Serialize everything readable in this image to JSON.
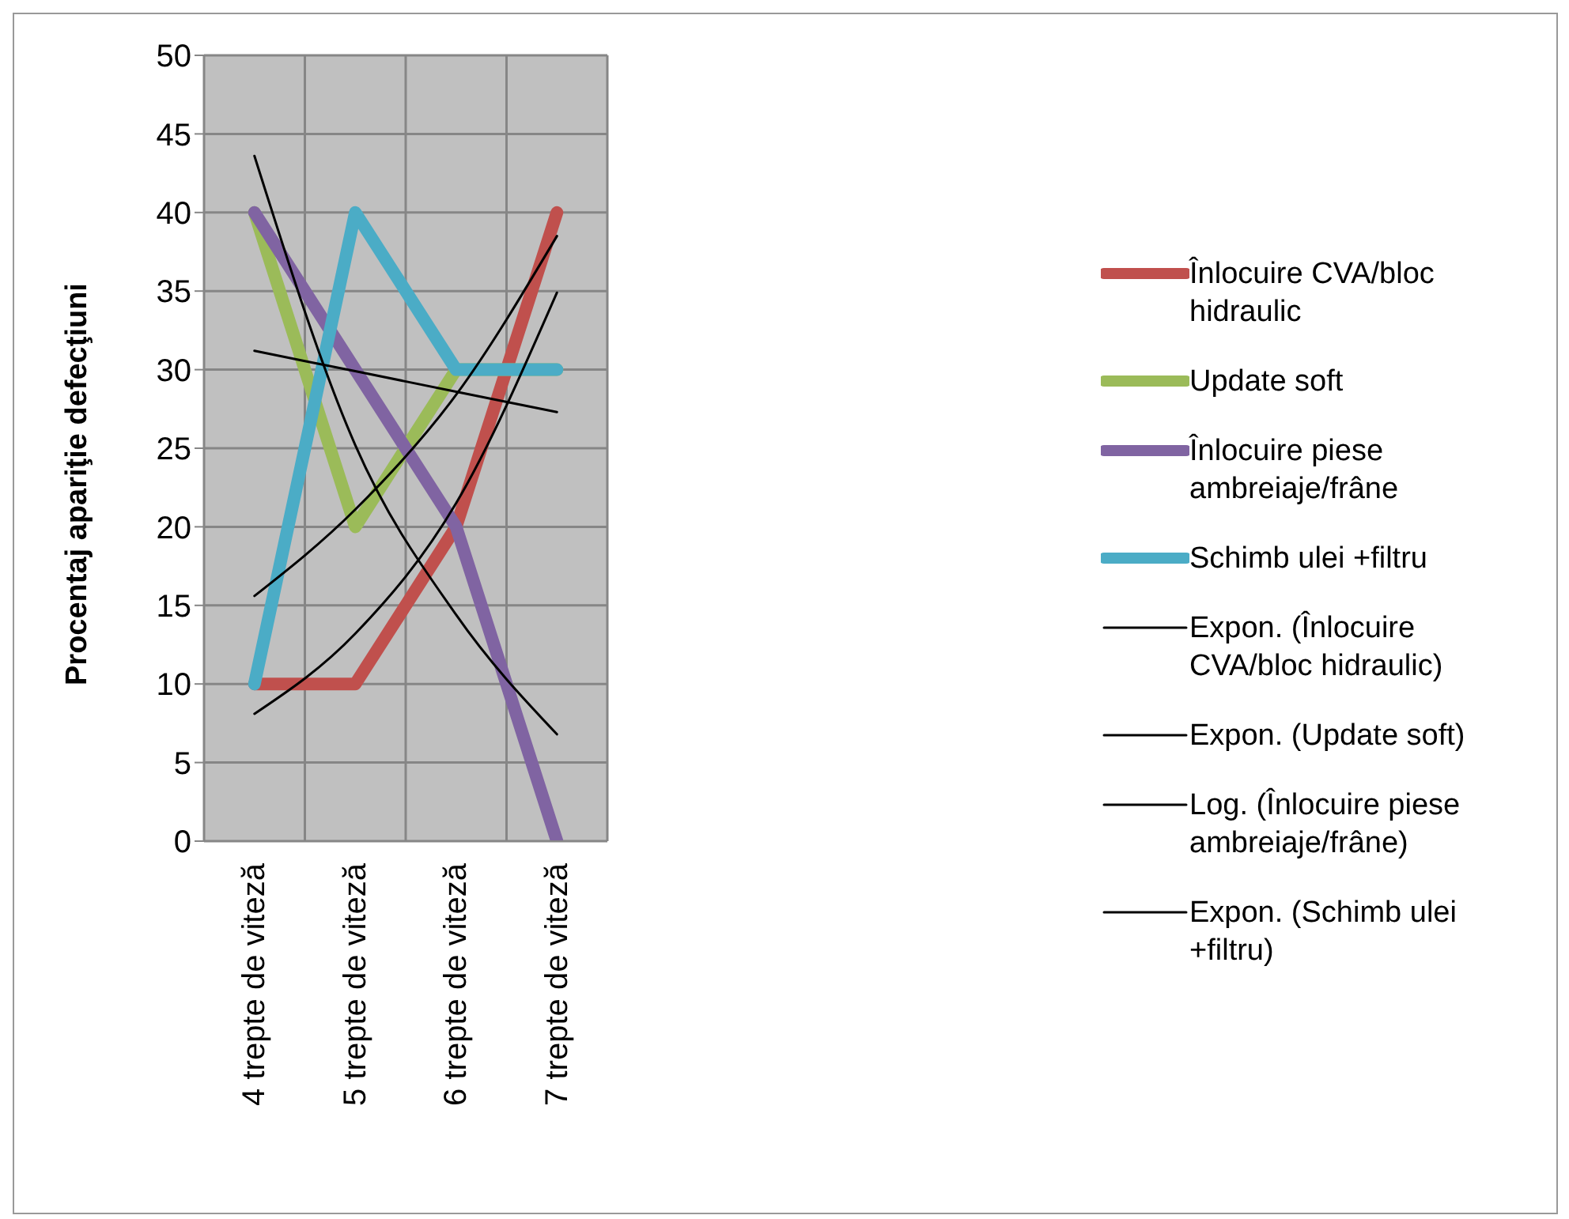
{
  "chart_data": {
    "type": "line",
    "ylabel": "Procentaj apariţie defecţiuni",
    "categories": [
      "4 trepte de viteză",
      "5 trepte de viteză",
      "6 trepte de viteză",
      "7 trepte de viteză"
    ],
    "series": [
      {
        "name": "Înlocuire CVA/bloc hidraulic",
        "color": "#c0504d",
        "values": [
          10,
          10,
          20,
          40
        ]
      },
      {
        "name": "Update soft",
        "color": "#9bbb59",
        "values": [
          40,
          20,
          30,
          30
        ]
      },
      {
        "name": "Înlocuire piese ambreiaje/frâne",
        "color": "#8064a2",
        "values": [
          40,
          30,
          20,
          0
        ]
      },
      {
        "name": "Schimb ulei +filtru",
        "color": "#4bacc6",
        "values": [
          10,
          40,
          30,
          30
        ]
      },
      {
        "name": "Expon. (Înlocuire CVA/bloc hidraulic)",
        "color": "#000000",
        "values": [
          8.1,
          13.2,
          21.5,
          34.9
        ]
      },
      {
        "name": "Expon. (Update soft)",
        "color": "#000000",
        "values": [
          31.2,
          29.9,
          28.6,
          27.3
        ]
      },
      {
        "name": "Log. (Înlocuire piese ambreiaje/frâne)",
        "color": "#000000",
        "values": [
          43.6,
          25.2,
          14.4,
          6.8
        ]
      },
      {
        "name": "Expon. (Schimb ulei +filtru)",
        "color": "#000000",
        "values": [
          15.6,
          21.1,
          28.4,
          38.5
        ]
      }
    ],
    "ylim": [
      0,
      50
    ],
    "yticks": [
      0,
      5,
      10,
      15,
      20,
      25,
      30,
      35,
      40,
      45,
      50
    ],
    "grid": true,
    "legend": "right"
  }
}
